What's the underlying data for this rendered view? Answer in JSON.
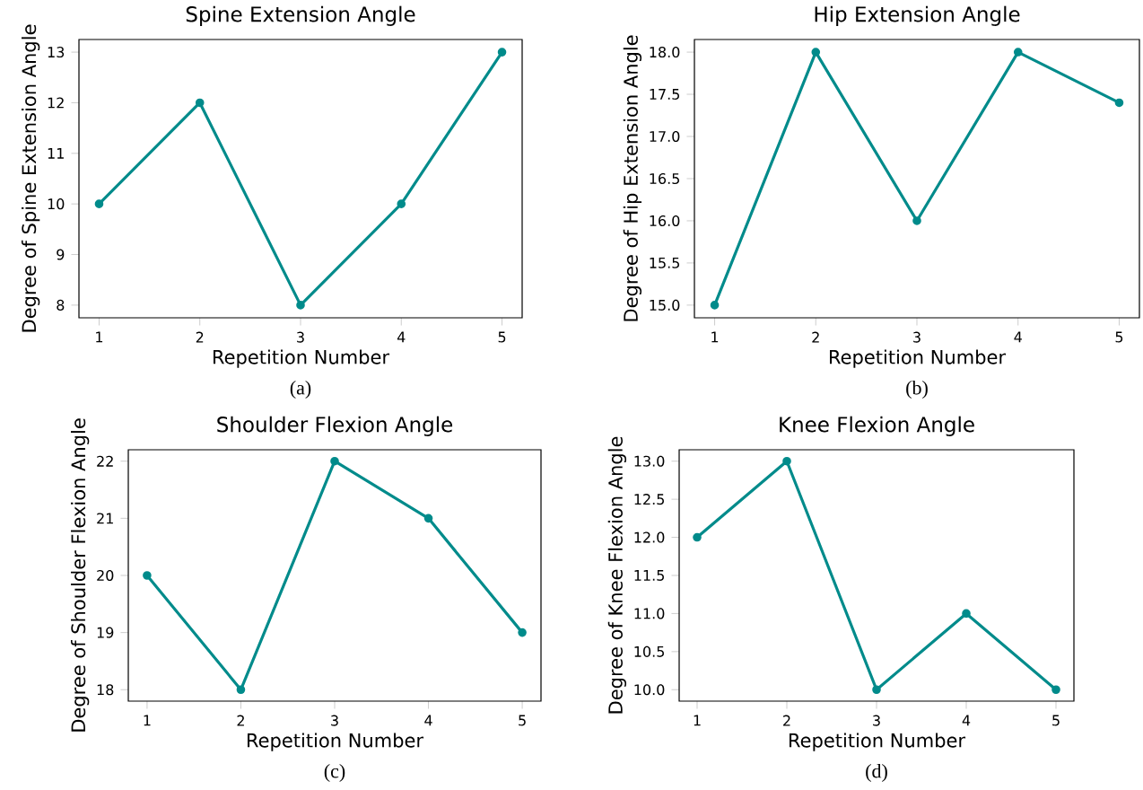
{
  "chart_data": [
    {
      "type": "line",
      "title": "Spine Extension Angle",
      "xlabel": "Repetition Number",
      "ylabel": "Degree of Spine Extension Angle",
      "x": [
        1,
        2,
        3,
        4,
        5
      ],
      "series": [
        {
          "color": "#008b8b",
          "values": [
            10,
            12,
            8,
            10,
            13
          ]
        }
      ],
      "xlim": [
        0.8,
        5.2
      ],
      "ylim": [
        7.75,
        13.25
      ],
      "xticks": [
        1,
        2,
        3,
        4,
        5
      ],
      "yticks": [
        8,
        9,
        10,
        11,
        12,
        13
      ],
      "marker": "circle",
      "line_style": "solid",
      "annotations": [
        "(a)"
      ]
    },
    {
      "type": "line",
      "title": "Hip Extension Angle",
      "xlabel": "Repetition Number",
      "ylabel": "Degree of Hip Extension Angle",
      "x": [
        1,
        2,
        3,
        4,
        5
      ],
      "series": [
        {
          "color": "#008b8b",
          "values": [
            15,
            18,
            16,
            18,
            17.4
          ]
        }
      ],
      "xlim": [
        0.8,
        5.2
      ],
      "ylim": [
        14.85,
        18.15
      ],
      "xticks": [
        1,
        2,
        3,
        4,
        5
      ],
      "yticks": [
        {
          "value": 15,
          "label": "15.0"
        },
        {
          "value": 15.5,
          "label": "15.5"
        },
        {
          "value": 16,
          "label": "16.0"
        },
        {
          "value": 16.5,
          "label": "16.5"
        },
        {
          "value": 17,
          "label": "17.0"
        },
        {
          "value": 17.5,
          "label": "17.5"
        },
        {
          "value": 18,
          "label": "18.0"
        }
      ],
      "marker": "circle",
      "line_style": "solid",
      "annotations": [
        "(b)"
      ]
    },
    {
      "type": "line",
      "title": "Shoulder Flexion Angle",
      "xlabel": "Repetition Number",
      "ylabel": "Degree of Shoulder Flexion Angle",
      "x": [
        1,
        2,
        3,
        4,
        5
      ],
      "series": [
        {
          "color": "#008b8b",
          "values": [
            20,
            18,
            22,
            21,
            19
          ]
        }
      ],
      "xlim": [
        0.8,
        5.2
      ],
      "ylim": [
        17.8,
        22.2
      ],
      "xticks": [
        1,
        2,
        3,
        4,
        5
      ],
      "yticks": [
        18,
        19,
        20,
        21,
        22
      ],
      "marker": "circle",
      "line_style": "solid",
      "annotations": [
        "(c)"
      ]
    },
    {
      "type": "line",
      "title": "Knee Flexion Angle",
      "xlabel": "Repetition Number",
      "ylabel": "Degree of Knee Flexion Angle",
      "x": [
        1,
        2,
        3,
        4,
        5
      ],
      "series": [
        {
          "color": "#008b8b",
          "values": [
            12,
            13,
            10,
            11,
            10
          ]
        }
      ],
      "xlim": [
        0.8,
        5.2
      ],
      "ylim": [
        9.85,
        13.15
      ],
      "xticks": [
        1,
        2,
        3,
        4,
        5
      ],
      "yticks": [
        {
          "value": 10,
          "label": "10.0"
        },
        {
          "value": 10.5,
          "label": "10.5"
        },
        {
          "value": 11,
          "label": "11.0"
        },
        {
          "value": 11.5,
          "label": "11.5"
        },
        {
          "value": 12,
          "label": "12.0"
        },
        {
          "value": 12.5,
          "label": "12.5"
        },
        {
          "value": 13,
          "label": "13.0"
        }
      ],
      "marker": "circle",
      "line_style": "solid",
      "annotations": [
        "(d)"
      ]
    }
  ]
}
